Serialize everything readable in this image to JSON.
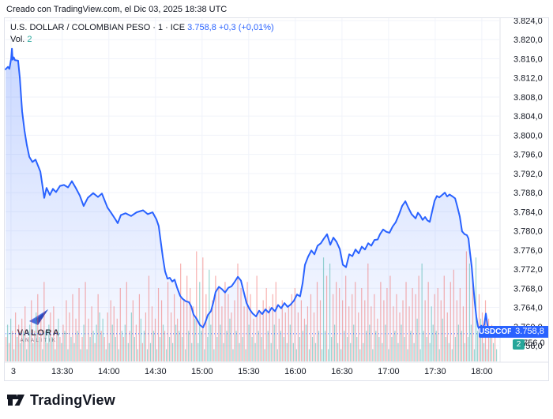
{
  "header": {
    "credit": "Creado con TradingView.com, el Dic 03, 2025 18:38 UTC"
  },
  "legend": {
    "symbol": "U.S. DOLLAR / COLOMBIAN PESO",
    "separator": "·",
    "interval": "1",
    "exchange": "ICE",
    "price": "3.758,8",
    "change": "+0,3 (+0,01%)",
    "volume_label": "Vol.",
    "volume_value": "2"
  },
  "price_scale": {
    "symbol_tag": "USDCOP",
    "last_price_label": "3.758,8",
    "volume_badge": "2",
    "covered_tick": "756,0"
  },
  "watermark": {
    "brand": "VALORA",
    "subtitle": "ANALITIK"
  },
  "footer": {
    "brand": "TradingView"
  },
  "colors": {
    "accent": "#2962ff",
    "area_top": "rgba(41,98,255,0.25)",
    "area_bottom": "rgba(41,98,255,0.02)",
    "grid": "#f0f3fa",
    "axis_border": "#e0e3eb",
    "text": "#131722",
    "label_bg": "#2962ff",
    "badge_bg": "#26a69a",
    "volume_up": "rgba(38,166,154,0.45)",
    "volume_down": "rgba(239,83,80,0.45)"
  },
  "chart_data": {
    "type": "area",
    "title": "U.S. DOLLAR / COLOMBIAN PESO",
    "symbol": "USDCOP",
    "interval": "1",
    "exchange": "ICE",
    "last_price": 3758.8,
    "change": 0.3,
    "change_pct": "+0,01%",
    "prev_close": 3758.5,
    "session_high": 3818.1,
    "session_low": 3758.8,
    "y_ticks": [
      3824,
      3820,
      3816,
      3812,
      3808,
      3804,
      3800,
      3796,
      3792,
      3788,
      3784,
      3780,
      3776,
      3772,
      3768,
      3764,
      3760,
      3756
    ],
    "y_tick_format": "dot-thousands comma-decimal, e.g. 3.824,0",
    "x_ticks": [
      {
        "t": 3.5,
        "label": "3"
      },
      {
        "t": 36.5,
        "label": "13:30"
      },
      {
        "t": 66.5,
        "label": "14:00"
      },
      {
        "t": 96.5,
        "label": "14:30"
      },
      {
        "t": 126.5,
        "label": "15:00"
      },
      {
        "t": 156.5,
        "label": "15:30"
      },
      {
        "t": 186.5,
        "label": "16:00"
      },
      {
        "t": 216.5,
        "label": "16:30"
      },
      {
        "t": 246.5,
        "label": "17:00"
      },
      {
        "t": 276.5,
        "label": "17:30"
      },
      {
        "t": 306.5,
        "label": "18:00"
      }
    ],
    "t_unit": "minutes from left edge (~12:55 UTC)",
    "series": [
      {
        "name": "USDCOP price",
        "points": [
          [
            0,
            3813.8
          ],
          [
            1.5,
            3814.3
          ],
          [
            2.5,
            3813.9
          ],
          [
            3.6,
            3816.0
          ],
          [
            4.1,
            3818.1
          ],
          [
            4.6,
            3815.8
          ],
          [
            5.3,
            3816.3
          ],
          [
            6.1,
            3815.7
          ],
          [
            8.1,
            3815.6
          ],
          [
            9.2,
            3812.0
          ],
          [
            10.7,
            3805.0
          ],
          [
            12.2,
            3801.0
          ],
          [
            13.7,
            3798.0
          ],
          [
            15.3,
            3795.5
          ],
          [
            17.3,
            3794.4
          ],
          [
            19.3,
            3794.9
          ],
          [
            22.4,
            3792.4
          ],
          [
            24.9,
            3786.9
          ],
          [
            26.4,
            3789.0
          ],
          [
            28.5,
            3787.5
          ],
          [
            30.5,
            3788.8
          ],
          [
            32.5,
            3788.1
          ],
          [
            35.1,
            3789.4
          ],
          [
            37.6,
            3789.6
          ],
          [
            40.2,
            3789.1
          ],
          [
            42.7,
            3790.4
          ],
          [
            45.2,
            3789.0
          ],
          [
            47.8,
            3787.4
          ],
          [
            50.3,
            3785.2
          ],
          [
            52.9,
            3786.9
          ],
          [
            56.4,
            3787.9
          ],
          [
            59.5,
            3787.1
          ],
          [
            62.0,
            3787.8
          ],
          [
            65.6,
            3784.9
          ],
          [
            68.1,
            3783.7
          ],
          [
            70.7,
            3782.4
          ],
          [
            72.2,
            3781.6
          ],
          [
            74.2,
            3783.3
          ],
          [
            77.3,
            3783.7
          ],
          [
            80.8,
            3783.1
          ],
          [
            84.4,
            3783.9
          ],
          [
            88.5,
            3784.3
          ],
          [
            91.5,
            3783.5
          ],
          [
            94.6,
            3783.9
          ],
          [
            97.1,
            3782.4
          ],
          [
            98.6,
            3781.0
          ],
          [
            99.6,
            3778.5
          ],
          [
            101.2,
            3774.5
          ],
          [
            102.7,
            3771.5
          ],
          [
            104.2,
            3770.0
          ],
          [
            105.7,
            3770.2
          ],
          [
            107.3,
            3769.4
          ],
          [
            108.8,
            3769.8
          ],
          [
            110.3,
            3768.2
          ],
          [
            112.4,
            3766.4
          ],
          [
            113.9,
            3765.8
          ],
          [
            115.9,
            3765.3
          ],
          [
            118.0,
            3765.1
          ],
          [
            119.5,
            3764.2
          ],
          [
            121.0,
            3762.5
          ],
          [
            123.0,
            3761.6
          ],
          [
            125.1,
            3760.3
          ],
          [
            127.1,
            3759.8
          ],
          [
            128.6,
            3760.9
          ],
          [
            130.2,
            3762.4
          ],
          [
            132.2,
            3763.2
          ],
          [
            133.7,
            3765.0
          ],
          [
            135.2,
            3767.2
          ],
          [
            137.3,
            3768.3
          ],
          [
            139.3,
            3767.8
          ],
          [
            141.3,
            3767.1
          ],
          [
            143.4,
            3768.1
          ],
          [
            145.4,
            3768.4
          ],
          [
            147.4,
            3769.3
          ],
          [
            149.5,
            3770.4
          ],
          [
            151.5,
            3769.6
          ],
          [
            153.0,
            3767.6
          ],
          [
            155.1,
            3764.9
          ],
          [
            157.1,
            3763.6
          ],
          [
            159.1,
            3762.7
          ],
          [
            161.2,
            3762.1
          ],
          [
            163.2,
            3763.3
          ],
          [
            165.2,
            3762.6
          ],
          [
            167.3,
            3763.6
          ],
          [
            169.3,
            3762.9
          ],
          [
            171.3,
            3763.9
          ],
          [
            173.4,
            3763.2
          ],
          [
            175.4,
            3764.5
          ],
          [
            177.4,
            3763.8
          ],
          [
            179.5,
            3764.9
          ],
          [
            181.5,
            3764.1
          ],
          [
            183.5,
            3764.6
          ],
          [
            185.6,
            3765.4
          ],
          [
            187.6,
            3766.7
          ],
          [
            189.6,
            3766.3
          ],
          [
            191.2,
            3769.1
          ],
          [
            192.7,
            3772.9
          ],
          [
            194.7,
            3774.6
          ],
          [
            196.8,
            3775.9
          ],
          [
            198.8,
            3775.1
          ],
          [
            200.8,
            3776.9
          ],
          [
            202.9,
            3777.4
          ],
          [
            204.9,
            3778.4
          ],
          [
            206.9,
            3779.3
          ],
          [
            209.0,
            3777.1
          ],
          [
            211.0,
            3778.6
          ],
          [
            213.0,
            3777.7
          ],
          [
            215.1,
            3776.2
          ],
          [
            217.1,
            3772.9
          ],
          [
            219.1,
            3772.4
          ],
          [
            221.2,
            3775.1
          ],
          [
            223.2,
            3774.7
          ],
          [
            225.2,
            3776.1
          ],
          [
            227.3,
            3775.3
          ],
          [
            229.3,
            3776.7
          ],
          [
            231.3,
            3776.1
          ],
          [
            233.4,
            3777.4
          ],
          [
            235.4,
            3776.9
          ],
          [
            237.4,
            3778.1
          ],
          [
            239.5,
            3778.2
          ],
          [
            241.0,
            3779.3
          ],
          [
            243.0,
            3780.3
          ],
          [
            245.1,
            3779.8
          ],
          [
            247.1,
            3779.6
          ],
          [
            249.1,
            3780.9
          ],
          [
            251.1,
            3781.8
          ],
          [
            253.2,
            3783.4
          ],
          [
            255.2,
            3785.2
          ],
          [
            257.3,
            3786.2
          ],
          [
            259.3,
            3784.8
          ],
          [
            261.3,
            3783.5
          ],
          [
            263.9,
            3782.6
          ],
          [
            265.4,
            3783.8
          ],
          [
            266.9,
            3783.2
          ],
          [
            268.4,
            3782.3
          ],
          [
            270.0,
            3782.9
          ],
          [
            271.5,
            3782.2
          ],
          [
            273.0,
            3781.9
          ],
          [
            274.5,
            3784.0
          ],
          [
            276.1,
            3786.3
          ],
          [
            277.6,
            3787.3
          ],
          [
            279.1,
            3787.0
          ],
          [
            280.6,
            3787.4
          ],
          [
            282.7,
            3788.0
          ],
          [
            284.2,
            3787.2
          ],
          [
            285.7,
            3787.6
          ],
          [
            287.7,
            3787.2
          ],
          [
            289.3,
            3786.8
          ],
          [
            290.8,
            3785.0
          ],
          [
            292.3,
            3783.0
          ],
          [
            293.8,
            3779.9
          ],
          [
            295.4,
            3779.3
          ],
          [
            296.9,
            3779.1
          ],
          [
            297.9,
            3778.4
          ],
          [
            298.9,
            3775.5
          ],
          [
            300.0,
            3772.5
          ],
          [
            301.0,
            3768.5
          ],
          [
            302.0,
            3765.0
          ],
          [
            303.0,
            3762.0
          ],
          [
            304.0,
            3760.0
          ],
          [
            305.0,
            3759.4
          ],
          [
            306.1,
            3760.2
          ],
          [
            307.1,
            3759.7
          ],
          [
            308.1,
            3760.4
          ],
          [
            309.1,
            3762.7
          ],
          [
            310.1,
            3760.3
          ],
          [
            311.1,
            3759.1
          ],
          [
            312.2,
            3758.8
          ]
        ]
      }
    ],
    "volume": {
      "encoding": "one char per 1-min bar; a-t = up/teal height level 1-20, A-T = down/red height level 1-20",
      "last_value": 2,
      "bars": "DfCgEbHdFcGeIbDfJcEhKdGbMeCfHdIbEgDcFeJbHdKcGeLbDfMbGdIeCfKhEgDbHcJfIdGbLeDfMcEhJdFbKgCeHbNcIeGbLdJfEbMdHcKfGePdJbNeLcIgRcmeQbKdofJbNdLfIcMeKgHbJePcLdIbMfKdGcNeHdJbLeIcKfMbGeJdHcIfKcLbHdJeGfIbKdHcMeJbqeNbpdKfMcLbJeNdIcKfMdHbLcJePfIbKeGdMcJfLbNdIeKcHfJdMbIeLcKgNbpeJdMcifKeLbJgNdHcMbOdJfLeIcRdpfNbqeKgHcJbGdFcEb"
    }
  }
}
